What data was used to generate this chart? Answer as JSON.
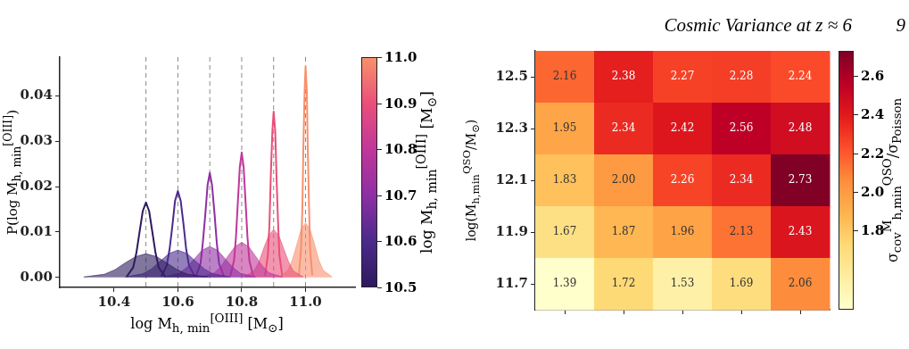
{
  "chart_data": [
    {
      "type": "line",
      "xlabel": "log M$_{h, min}$$^{[OIII]}$ [M$_{⊙}$]",
      "ylabel": "P(log M$_{h, min}$$^{[OIII]}$)",
      "clabel": "log M$_{h, min}$$^{[OIII]}$ [M$_{⊙}$]",
      "clim": [
        10.5,
        11.0
      ],
      "cticks": [
        {
          "value": 10.5,
          "label": "10.5"
        },
        {
          "value": 10.6,
          "label": "10.6"
        },
        {
          "value": 10.7,
          "label": "10.7"
        },
        {
          "value": 10.8,
          "label": "10.8"
        },
        {
          "value": 10.9,
          "label": "10.9"
        },
        {
          "value": 11,
          "label": "11.0"
        }
      ],
      "xlim": [
        10.23,
        11.155
      ],
      "ylim": [
        -0.0022,
        0.0485
      ],
      "xticks": [
        10.4,
        10.6,
        10.8,
        {
          "value": 11,
          "label": "11.0"
        }
      ],
      "yticks": [
        {
          "value": 0,
          "label": "0.00"
        },
        {
          "value": 0.01,
          "label": "0.01"
        },
        {
          "value": 0.02,
          "label": "0.02"
        },
        {
          "value": 0.03,
          "label": "0.03"
        },
        {
          "value": 0.04,
          "label": "0.04"
        }
      ],
      "series": [
        {
          "type": "area",
          "color": "#2d1a5e",
          "x": [
            10.305,
            10.37,
            10.403,
            10.435,
            10.468,
            10.5,
            10.533,
            10.565,
            10.598,
            10.63,
            10.695
          ],
          "values": [
            0.0001,
            0.0007,
            0.0017,
            0.0032,
            0.0046,
            0.0052,
            0.0046,
            0.0032,
            0.0017,
            0.0007,
            0.0001
          ]
        },
        {
          "type": "area",
          "color": "#4b2a8c",
          "x": [
            10.435,
            10.49,
            10.518,
            10.545,
            10.573,
            10.6,
            10.628,
            10.655,
            10.683,
            10.71,
            10.765
          ],
          "values": [
            0.0001,
            0.0008,
            0.0019,
            0.0036,
            0.0053,
            0.006,
            0.0053,
            0.0036,
            0.0019,
            0.0008,
            0.0001
          ]
        },
        {
          "type": "area",
          "color": "#8e2fa3",
          "x": [
            10.556,
            10.604,
            10.628,
            10.652,
            10.676,
            10.7,
            10.724,
            10.748,
            10.772,
            10.796,
            10.844
          ],
          "values": [
            0.0001,
            0.0009,
            0.0022,
            0.0041,
            0.006,
            0.0068,
            0.006,
            0.0041,
            0.0022,
            0.0009,
            0.0001
          ]
        },
        {
          "type": "area",
          "color": "#c0379a",
          "x": [
            10.671,
            10.714,
            10.736,
            10.757,
            10.779,
            10.8,
            10.822,
            10.843,
            10.865,
            10.886,
            10.929
          ],
          "values": [
            0.0001,
            0.001,
            0.0025,
            0.0047,
            0.0068,
            0.0077,
            0.0068,
            0.0047,
            0.0025,
            0.001,
            0.0001
          ]
        },
        {
          "type": "area",
          "color": "#ea4f7a",
          "x": [
            10.807,
            10.838,
            10.854,
            10.869,
            10.885,
            10.9,
            10.916,
            10.931,
            10.947,
            10.962,
            10.993
          ],
          "values": [
            0.0001,
            0.0014,
            0.0034,
            0.0064,
            0.0093,
            0.0105,
            0.0093,
            0.0064,
            0.0034,
            0.0014,
            0.0001
          ]
        },
        {
          "type": "area",
          "color": "#f8906c",
          "x": [
            10.918,
            10.945,
            10.959,
            10.973,
            10.986,
            11.0,
            11.014,
            11.028,
            11.041,
            11.055,
            11.083
          ],
          "values": [
            0.0001,
            0.0016,
            0.0039,
            0.0073,
            0.0106,
            0.012,
            0.0106,
            0.0073,
            0.0039,
            0.0016,
            0.0001
          ]
        },
        {
          "type": "line",
          "color": "#2d1a5e",
          "x": [
            10.44,
            10.46,
            10.47,
            10.48,
            10.49,
            10.5,
            10.51,
            10.52,
            10.53,
            10.54,
            10.56
          ],
          "values": [
            0.0002,
            0.0022,
            0.0054,
            0.01,
            0.0146,
            0.0165,
            0.0146,
            0.01,
            0.0054,
            0.0022,
            0.0002
          ]
        },
        {
          "type": "line",
          "color": "#4b2a8c",
          "x": [
            10.548,
            10.565,
            10.574,
            10.583,
            10.591,
            10.6,
            10.609,
            10.618,
            10.626,
            10.635,
            10.653
          ],
          "values": [
            0.0002,
            0.0026,
            0.0062,
            0.0115,
            0.0168,
            0.019,
            0.0168,
            0.0115,
            0.0062,
            0.0026,
            0.0002
          ]
        },
        {
          "type": "line",
          "color": "#8e2fa3",
          "x": [
            10.657,
            10.671,
            10.678,
            10.686,
            10.693,
            10.7,
            10.707,
            10.715,
            10.722,
            10.729,
            10.744
          ],
          "values": [
            0.0003,
            0.0031,
            0.0075,
            0.0139,
            0.0203,
            0.023,
            0.0203,
            0.0139,
            0.0075,
            0.0031,
            0.0003
          ]
        },
        {
          "type": "line",
          "color": "#c0379a",
          "x": [
            10.764,
            10.776,
            10.782,
            10.788,
            10.794,
            10.8,
            10.806,
            10.812,
            10.818,
            10.824,
            10.836
          ],
          "values": [
            0.0003,
            0.0037,
            0.0089,
            0.0167,
            0.0243,
            0.0275,
            0.0243,
            0.0167,
            0.0089,
            0.0037,
            0.0003
          ]
        },
        {
          "type": "line",
          "color": "#ea4f7a",
          "x": [
            10.873,
            10.882,
            10.887,
            10.891,
            10.896,
            10.9,
            10.905,
            10.909,
            10.914,
            10.918,
            10.927
          ],
          "values": [
            0.0004,
            0.0049,
            0.0119,
            0.0221,
            0.0322,
            0.0365,
            0.0322,
            0.0221,
            0.0119,
            0.0049,
            0.0004
          ]
        },
        {
          "type": "line",
          "color": "#f8906c",
          "x": [
            10.979,
            10.986,
            10.99,
            10.993,
            10.997,
            11.0,
            11.004,
            11.007,
            11.011,
            11.014,
            11.021
          ],
          "values": [
            0.0005,
            0.0063,
            0.0151,
            0.0282,
            0.041,
            0.0465,
            0.041,
            0.0282,
            0.0151,
            0.0063,
            0.0005
          ]
        }
      ],
      "ref_lines": [
        {
          "axis": "x",
          "value": 10.5,
          "color": "#888888",
          "line_style": "dashed"
        },
        {
          "axis": "x",
          "value": 10.6,
          "color": "#888888",
          "line_style": "dashed"
        },
        {
          "axis": "x",
          "value": 10.7,
          "color": "#888888",
          "line_style": "dashed"
        },
        {
          "axis": "x",
          "value": 10.8,
          "color": "#888888",
          "line_style": "dashed"
        },
        {
          "axis": "x",
          "value": 10.9,
          "color": "#888888",
          "line_style": "dashed"
        },
        {
          "axis": "x",
          "value": 11.0,
          "color": "#888888",
          "line_style": "dashed"
        }
      ]
    },
    {
      "type": "heatmap",
      "annotations": [
        "Cosmic Variance at z ≈ 6",
        "9"
      ],
      "ylabel": "log(M$_{h,min}$$^{QSO}$/M$_{⊙}$)",
      "clabel": "σ$_{cov}$$^{M}$$_{h,min}$$^{QSO}$/σ$_{Poisson}$",
      "categories": [
        null,
        null,
        null,
        null,
        null
      ],
      "y_categories": [
        "12.5",
        "12.3",
        "12.1",
        "11.9",
        "11.7"
      ],
      "cells": [
        [
          2.16,
          2.38,
          2.27,
          2.28,
          2.24
        ],
        [
          1.95,
          2.34,
          2.42,
          2.56,
          2.48
        ],
        [
          1.83,
          2.0,
          2.26,
          2.34,
          2.73
        ],
        [
          1.67,
          1.87,
          1.96,
          2.13,
          2.43
        ],
        [
          1.39,
          1.72,
          1.53,
          1.69,
          2.06
        ]
      ],
      "cell_labels": [
        [
          "2.16",
          "2.38",
          "2.27",
          "2.28",
          "2.24"
        ],
        [
          "1.95",
          "2.34",
          "2.42",
          "2.56",
          "2.48"
        ],
        [
          "1.83",
          "2.00",
          "2.26",
          "2.34",
          "2.73"
        ],
        [
          "1.67",
          "1.87",
          "1.96",
          "2.13",
          "2.43"
        ],
        [
          "1.39",
          "1.72",
          "1.53",
          "1.69",
          "2.06"
        ]
      ],
      "clim": [
        1.39,
        2.73
      ],
      "cticks": [
        1.8,
        {
          "value": 2.0,
          "label": "2.0"
        },
        2.2,
        2.4,
        2.6
      ]
    }
  ]
}
